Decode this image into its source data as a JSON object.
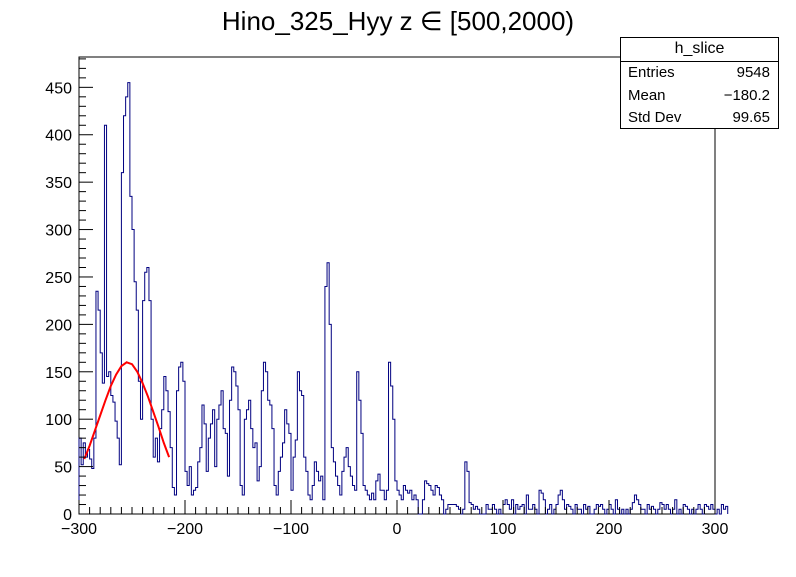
{
  "chart_data": {
    "type": "histogram",
    "title": "Hino_325_Hyy z  ∈ [500,2000)",
    "xlim": [
      -300,
      300
    ],
    "ylim": [
      0,
      482
    ],
    "x_ticks": [
      -300,
      -200,
      -100,
      0,
      100,
      200,
      300
    ],
    "x_tick_labels": [
      "−300",
      "−200",
      "−100",
      "0",
      "100",
      "200",
      "300"
    ],
    "y_ticks": [
      0,
      50,
      100,
      150,
      200,
      250,
      300,
      350,
      400,
      450
    ],
    "y_tick_labels": [
      "0",
      "50",
      "100",
      "150",
      "200",
      "250",
      "300",
      "350",
      "400",
      "450"
    ],
    "bin_width": 2,
    "series": [
      {
        "name": "h_slice",
        "color": "#000080",
        "x_start": -300,
        "values": [
          80,
          52,
          75,
          60,
          68,
          58,
          48,
          80,
          235,
          215,
          170,
          138,
          410,
          145,
          150,
          125,
          118,
          98,
          80,
          52,
          360,
          420,
          440,
          455,
          335,
          300,
          245,
          215,
          140,
          100,
          225,
          255,
          260,
          225,
          100,
          60,
          80,
          55,
          90,
          110,
          145,
          130,
          108,
          70,
          28,
          20,
          130,
          155,
          160,
          140,
          45,
          30,
          50,
          20,
          25,
          28,
          55,
          70,
          115,
          95,
          45,
          80,
          95,
          110,
          50,
          100,
          115,
          130,
          90,
          85,
          40,
          120,
          155,
          150,
          135,
          110,
          30,
          20,
          100,
          110,
          120,
          90,
          70,
          75,
          35,
          50,
          130,
          160,
          150,
          120,
          115,
          90,
          30,
          20,
          45,
          60,
          75,
          110,
          95,
          85,
          25,
          60,
          78,
          150,
          130,
          125,
          60,
          45,
          20,
          15,
          30,
          55,
          45,
          35,
          40,
          15,
          240,
          265,
          200,
          70,
          55,
          40,
          30,
          20,
          45,
          60,
          70,
          50,
          40,
          30,
          25,
          150,
          120,
          85,
          30,
          25,
          20,
          15,
          22,
          15,
          35,
          42,
          25,
          25,
          15,
          25,
          160,
          135,
          100,
          35,
          25,
          20,
          15,
          30,
          25,
          22,
          25,
          15,
          20,
          15,
          0,
          0,
          15,
          35,
          32,
          30,
          25,
          20,
          30,
          28,
          20,
          15,
          0,
          5,
          10,
          10,
          10,
          10,
          8,
          5,
          0,
          5,
          55,
          45,
          12,
          10,
          5,
          8,
          5,
          0,
          0,
          0,
          10,
          5,
          5,
          10,
          5,
          0,
          5,
          0,
          10,
          15,
          10,
          5,
          15,
          0,
          10,
          5,
          8,
          10,
          0,
          20,
          5,
          5,
          10,
          5,
          0,
          25,
          22,
          15,
          0,
          5,
          10,
          0,
          5,
          10,
          20,
          25,
          15,
          5,
          10,
          8,
          5,
          0,
          10,
          5,
          5,
          0,
          10,
          5,
          8,
          0,
          0,
          5,
          10,
          8,
          10,
          5,
          0,
          5,
          10,
          5,
          0,
          15,
          5,
          0,
          5,
          0,
          5,
          0,
          5,
          12,
          20,
          15,
          10,
          5,
          5,
          0,
          10,
          5,
          8,
          5,
          0,
          5,
          12,
          10,
          5,
          10,
          5,
          0,
          5,
          15,
          0,
          5,
          0,
          10,
          8,
          5,
          0,
          5,
          0,
          5,
          10,
          5,
          0,
          10,
          8,
          5,
          10,
          5,
          0,
          5,
          0,
          10,
          5,
          8
        ]
      },
      {
        "name": "fit",
        "type": "line",
        "color": "#ff0000",
        "x": [
          -295,
          -290,
          -285,
          -280,
          -275,
          -270,
          -265,
          -260,
          -255,
          -250,
          -245,
          -240,
          -235,
          -230,
          -225,
          -220,
          -215
        ],
        "values": [
          58,
          72,
          88,
          104,
          120,
          135,
          147,
          156,
          160,
          158,
          150,
          138,
          124,
          108,
          92,
          75,
          60
        ]
      }
    ],
    "stats": {
      "header": "h_slice",
      "rows": [
        {
          "label": "Entries",
          "value": "9548"
        },
        {
          "label": "Mean",
          "value": "−180.2"
        },
        {
          "label": "Std Dev",
          "value": "99.65"
        }
      ]
    },
    "grid": false
  }
}
